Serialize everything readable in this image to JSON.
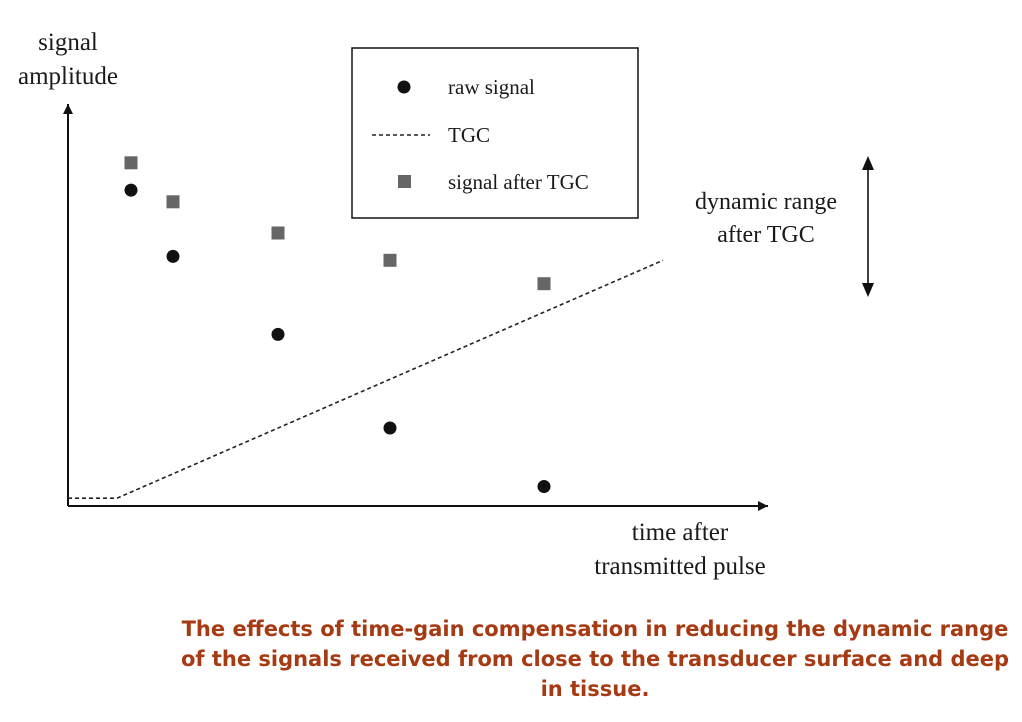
{
  "caption": "The effects of time-gain compensation in reducing the dynamic range of the signals received from close to the transducer surface and deep in tissue.",
  "chart_data": {
    "type": "scatter",
    "xlabel_lines": [
      "time after",
      "transmitted pulse"
    ],
    "ylabel_lines": [
      "signal",
      "amplitude"
    ],
    "xlim": [
      0,
      100
    ],
    "ylim": [
      0,
      100
    ],
    "grid": false,
    "legend_position": "top-center",
    "series": [
      {
        "name": "raw signal",
        "marker": "circle",
        "color": "#111111",
        "x": [
          9,
          15,
          30,
          46,
          68
        ],
        "y": [
          81,
          64,
          44,
          20,
          5
        ]
      },
      {
        "name": "TGC",
        "marker": "dashed-line",
        "color": "#222222",
        "x": [
          0,
          7,
          85
        ],
        "y": [
          2,
          2,
          63
        ]
      },
      {
        "name": "signal after TGC",
        "marker": "square",
        "color": "#666666",
        "x": [
          9,
          15,
          30,
          46,
          68
        ],
        "y": [
          88,
          78,
          70,
          63,
          57
        ]
      }
    ],
    "annotation": {
      "text_lines": [
        "dynamic range",
        "after TGC"
      ],
      "arrow": "double-headed-vertical"
    }
  }
}
